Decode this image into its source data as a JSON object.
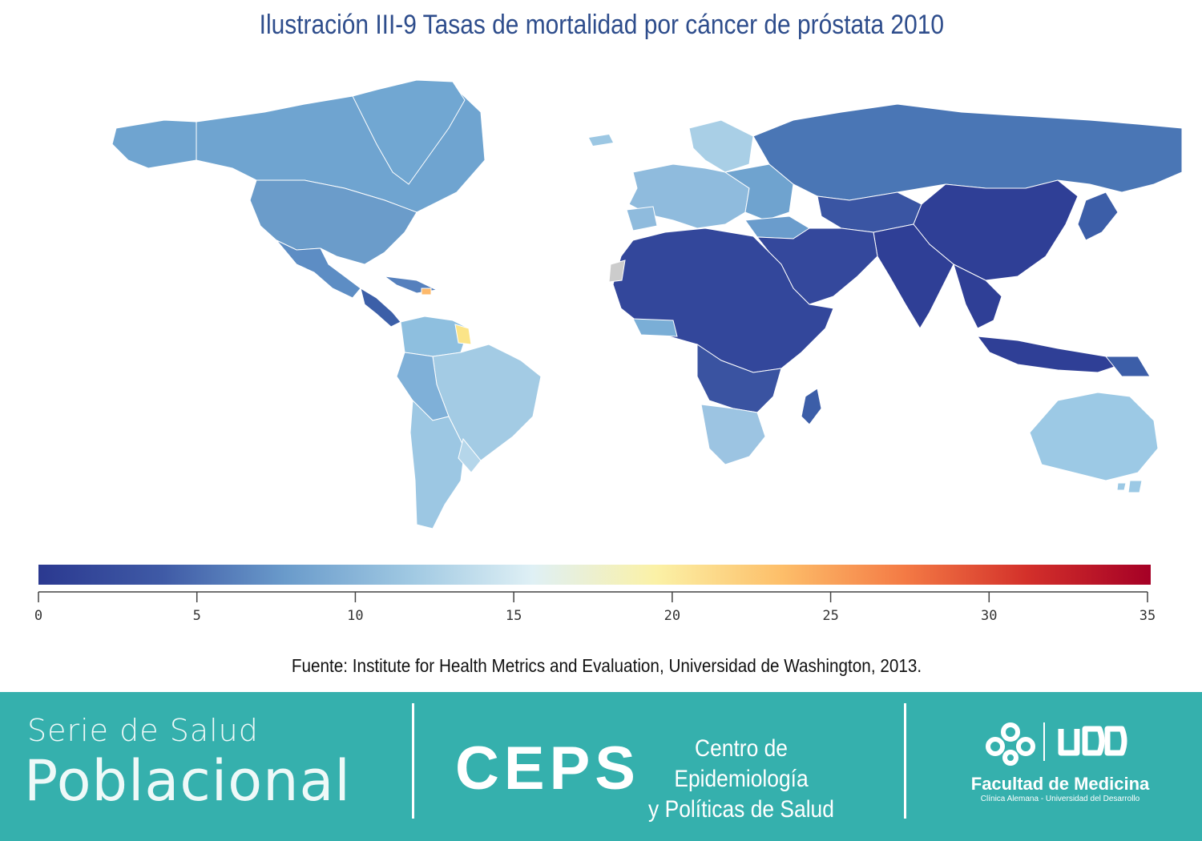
{
  "title": "Ilustración III-9 Tasas de mortalidad por cáncer de próstata 2010",
  "source": "Fuente: Institute for Health Metrics and Evaluation, Universidad de Washington, 2013.",
  "legend": {
    "min": 0,
    "max": 35,
    "ticks": [
      "0",
      "5",
      "10",
      "15",
      "20",
      "25",
      "30",
      "35"
    ],
    "colors": [
      "#2b3990",
      "#3f5aa6",
      "#6a9bcb",
      "#9fc8e2",
      "#dff0f5",
      "#fbf1a6",
      "#fdbf6a",
      "#f47b45",
      "#d3302a",
      "#a50026"
    ]
  },
  "colors": {
    "north_america": "#6fa4d0",
    "greenland": "#71a7d2",
    "mexico": "#5d8dc4",
    "central_america": "#3c5fa8",
    "south_america": "#8ebfdf",
    "brazil": "#a3cbe4",
    "southern_cone": "#9cc7e3",
    "guyana": "#fbe488",
    "caribbean_hot": "#fdb96b",
    "europe": "#8fbbdd",
    "russia": "#4a76b5",
    "asia_core": "#2f3f96",
    "middle_east": "#34489c",
    "africa": "#33479b",
    "southern_africa": "#9cc4e2",
    "west_africa_coast": "#7aaed6",
    "oceania": "#9cc9e5",
    "madagascar": "#3c5ea8",
    "western_sahara": "#cccccc",
    "ocean": "#ffffff",
    "footer": "#35b0ad"
  },
  "footer": {
    "serie": "Serie de Salud",
    "poblacional": "Poblacional",
    "ceps": "CEPS",
    "ceps_line1": "Centro de Epidemiología",
    "ceps_line2": "y Políticas de Salud",
    "udd": "UDD",
    "facultad": "Facultad de Medicina",
    "facultad_sub": "Clínica Alemana - Universidad del Desarrollo"
  }
}
